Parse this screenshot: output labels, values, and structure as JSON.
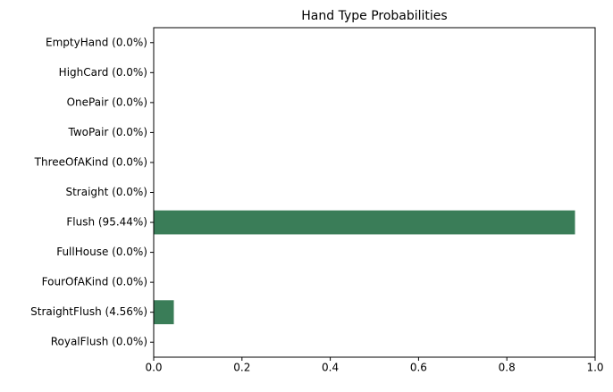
{
  "chart_data": {
    "type": "barh",
    "title": "Hand Type Probabilities",
    "categories": [
      "EmptyHand (0.0%)",
      "HighCard (0.0%)",
      "OnePair (0.0%)",
      "TwoPair (0.0%)",
      "ThreeOfAKind (0.0%)",
      "Straight (0.0%)",
      "Flush (95.44%)",
      "FullHouse (0.0%)",
      "FourOfAKind (0.0%)",
      "StraightFlush (4.56%)",
      "RoyalFlush (0.0%)"
    ],
    "values": [
      0,
      0,
      0,
      0,
      0,
      0,
      0.9544,
      0,
      0,
      0.0456,
      0
    ],
    "color": "#3a7d58",
    "xlim": [
      0,
      1
    ],
    "xticks": [
      {
        "value": 0,
        "label": "0.0"
      },
      {
        "value": 0.2,
        "label": "0.2"
      },
      {
        "value": 0.4,
        "label": "0.4"
      },
      {
        "value": 0.6,
        "label": "0.6"
      },
      {
        "value": 0.8,
        "label": "0.8"
      },
      {
        "value": 1,
        "label": "1.0"
      }
    ]
  }
}
